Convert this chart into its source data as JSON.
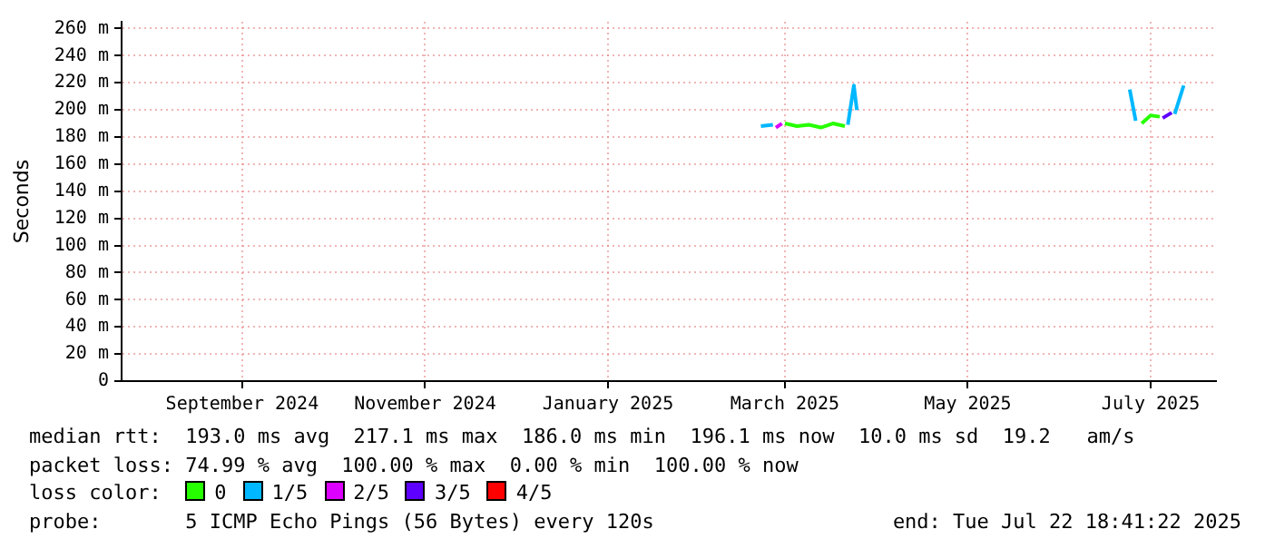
{
  "chart_data": {
    "type": "line",
    "ylabel": "Seconds",
    "legend_title": "loss color:",
    "legend": "bottom",
    "grid": true,
    "marker": "none",
    "line_style": "solid",
    "xlim": [
      "2024-07-22T18:41",
      "2025-07-22T18:41"
    ],
    "xticks": [
      {
        "value": "2024-09-01",
        "label": "September 2024"
      },
      {
        "value": "2024-11-01",
        "label": "November 2024"
      },
      {
        "value": "2025-01-01",
        "label": "January 2025"
      },
      {
        "value": "2025-03-01",
        "label": "March 2025"
      },
      {
        "value": "2025-05-01",
        "label": "May 2025"
      },
      {
        "value": "2025-07-01",
        "label": "July 2025"
      }
    ],
    "ylim": [
      0,
      265
    ],
    "yticks": [
      0,
      {
        "value": 20,
        "label": "20 m"
      },
      {
        "value": 40,
        "label": "40 m"
      },
      {
        "value": 60,
        "label": "60 m"
      },
      {
        "value": 80,
        "label": "80 m"
      },
      {
        "value": 100,
        "label": "100 m"
      },
      {
        "value": 120,
        "label": "120 m"
      },
      {
        "value": 140,
        "label": "140 m"
      },
      {
        "value": 160,
        "label": "160 m"
      },
      {
        "value": 180,
        "label": "180 m"
      },
      {
        "value": 200,
        "label": "200 m"
      },
      {
        "value": 220,
        "label": "220 m"
      },
      {
        "value": 240,
        "label": "240 m"
      },
      {
        "value": 260,
        "label": "260 m"
      }
    ],
    "series": [
      {
        "name": "0",
        "color": "#26ff00",
        "x": [
          "2025-03-01",
          "2025-03-05",
          "2025-03-09",
          "2025-03-13",
          "2025-03-17",
          "2025-03-21",
          "2025-05-01",
          "2025-06-28",
          "2025-07-01",
          "2025-07-04"
        ],
        "values": [
          190,
          188,
          189,
          187,
          190,
          188,
          null,
          190,
          196,
          195
        ]
      },
      {
        "name": "1/5",
        "color": "#00b8ff",
        "x": [
          "2025-02-21",
          "2025-02-25",
          "2025-03-10",
          "2025-03-22",
          "2025-03-24",
          "2025-03-25",
          "2025-05-01",
          "2025-06-24",
          "2025-06-26",
          "2025-06-27",
          "2025-07-09",
          "2025-07-12"
        ],
        "values": [
          188,
          189,
          null,
          189,
          218,
          200,
          null,
          215,
          192,
          null,
          197,
          218
        ]
      },
      {
        "name": "2/5",
        "color": "#dd00ff",
        "x": [
          "2025-02-26",
          "2025-02-28"
        ],
        "values": [
          187,
          190
        ]
      },
      {
        "name": "3/5",
        "color": "#5e00ff",
        "x": [
          "2025-07-05",
          "2025-07-08"
        ],
        "values": [
          194,
          198
        ]
      },
      {
        "name": "4/5",
        "color": "#ff0000"
      }
    ],
    "annotations": [
      "median rtt:  193.0 ms avg  217.1 ms max  186.0 ms min  196.1 ms now  10.0 ms sd  19.2   am/s",
      "packet loss: 74.99 % avg  100.00 % max  0.00 % min  100.00 % now",
      "probe:       5 ICMP Echo Pings (56 Bytes) every 120s",
      "end: Tue Jul 22 18:41:22 2025"
    ]
  }
}
